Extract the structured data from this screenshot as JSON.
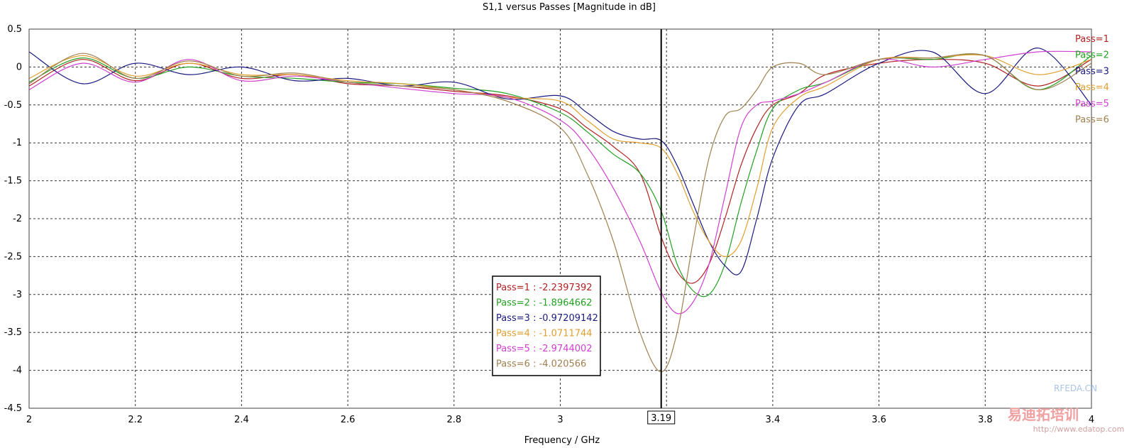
{
  "chart_data": {
    "type": "line",
    "title": "S1,1 versus Passes [Magnitude in dB]",
    "xlabel": "Frequency / GHz",
    "ylabel": "",
    "xlim": [
      2,
      4
    ],
    "ylim": [
      -4.5,
      0.5
    ],
    "x_ticks": [
      "2",
      "2.2",
      "2.4",
      "2.6",
      "2.8",
      "3",
      "3.2",
      "3.4",
      "3.6",
      "3.8",
      "4"
    ],
    "y_ticks": [
      "0.5",
      "0",
      "-0.5",
      "-1",
      "-1.5",
      "-2",
      "-2.5",
      "-3",
      "-3.5",
      "-4",
      "-4.5"
    ],
    "grid": true,
    "legend_position": "right",
    "marker": {
      "x": 3.19,
      "label": "3.19"
    },
    "series": [
      {
        "name": "Pass=1",
        "color": "#b22222",
        "x": [
          2.0,
          2.1,
          2.2,
          2.3,
          2.4,
          2.5,
          2.6,
          2.7,
          2.8,
          2.9,
          3.0,
          3.05,
          3.1,
          3.15,
          3.19,
          3.22,
          3.25,
          3.28,
          3.31,
          3.34,
          3.37,
          3.4,
          3.45,
          3.5,
          3.6,
          3.7,
          3.8,
          3.9,
          4.0
        ],
        "y": [
          -0.25,
          0.1,
          -0.18,
          0.05,
          -0.15,
          -0.1,
          -0.22,
          -0.25,
          -0.32,
          -0.38,
          -0.55,
          -0.8,
          -1.05,
          -1.4,
          -2.24,
          -2.7,
          -2.85,
          -2.6,
          -2.0,
          -1.3,
          -0.8,
          -0.5,
          -0.35,
          -0.1,
          0.05,
          0.1,
          0.05,
          -0.25,
          0.1
        ]
      },
      {
        "name": "Pass=2",
        "color": "#22a022",
        "x": [
          2.0,
          2.1,
          2.2,
          2.3,
          2.4,
          2.5,
          2.6,
          2.7,
          2.8,
          2.9,
          3.0,
          3.05,
          3.1,
          3.15,
          3.19,
          3.22,
          3.25,
          3.28,
          3.31,
          3.34,
          3.37,
          3.4,
          3.45,
          3.5,
          3.6,
          3.7,
          3.8,
          3.9,
          4.0
        ],
        "y": [
          -0.2,
          0.12,
          -0.15,
          0.0,
          -0.12,
          -0.15,
          -0.2,
          -0.22,
          -0.28,
          -0.35,
          -0.6,
          -0.85,
          -1.15,
          -1.4,
          -1.9,
          -2.6,
          -2.95,
          -3.0,
          -2.6,
          -1.8,
          -1.1,
          -0.55,
          -0.3,
          -0.2,
          0.1,
          0.1,
          0.15,
          -0.3,
          0.15
        ]
      },
      {
        "name": "Pass=3",
        "color": "#1a1a80",
        "x": [
          2.0,
          2.1,
          2.2,
          2.3,
          2.4,
          2.5,
          2.6,
          2.7,
          2.8,
          2.9,
          3.0,
          3.05,
          3.1,
          3.15,
          3.19,
          3.22,
          3.25,
          3.28,
          3.31,
          3.34,
          3.37,
          3.4,
          3.45,
          3.5,
          3.6,
          3.7,
          3.8,
          3.9,
          4.0
        ],
        "y": [
          0.2,
          -0.22,
          0.05,
          -0.1,
          0.0,
          -0.18,
          -0.15,
          -0.25,
          -0.2,
          -0.42,
          -0.38,
          -0.6,
          -0.85,
          -0.95,
          -0.97,
          -1.3,
          -1.8,
          -2.3,
          -2.62,
          -2.7,
          -2.0,
          -1.2,
          -0.5,
          -0.35,
          0.05,
          0.2,
          -0.35,
          0.25,
          -0.5
        ]
      },
      {
        "name": "Pass=4",
        "color": "#e0a030",
        "x": [
          2.0,
          2.1,
          2.2,
          2.3,
          2.4,
          2.5,
          2.6,
          2.7,
          2.8,
          2.9,
          3.0,
          3.05,
          3.1,
          3.15,
          3.19,
          3.22,
          3.25,
          3.28,
          3.31,
          3.34,
          3.37,
          3.4,
          3.45,
          3.5,
          3.6,
          3.7,
          3.8,
          3.9,
          4.0
        ],
        "y": [
          -0.15,
          0.15,
          -0.12,
          0.05,
          -0.1,
          -0.1,
          -0.18,
          -0.22,
          -0.3,
          -0.4,
          -0.45,
          -0.7,
          -0.95,
          -1.0,
          -1.07,
          -1.4,
          -1.9,
          -2.3,
          -2.5,
          -2.3,
          -1.6,
          -0.8,
          -0.4,
          -0.25,
          0.1,
          0.12,
          0.15,
          -0.1,
          0.1
        ]
      },
      {
        "name": "Pass=5",
        "color": "#d040d0",
        "x": [
          2.0,
          2.1,
          2.2,
          2.3,
          2.4,
          2.5,
          2.6,
          2.7,
          2.8,
          2.9,
          3.0,
          3.05,
          3.1,
          3.15,
          3.19,
          3.22,
          3.25,
          3.28,
          3.31,
          3.34,
          3.37,
          3.4,
          3.45,
          3.5,
          3.6,
          3.7,
          3.8,
          3.9,
          4.0
        ],
        "y": [
          -0.3,
          0.05,
          -0.2,
          0.1,
          -0.18,
          -0.12,
          -0.2,
          -0.28,
          -0.35,
          -0.4,
          -0.7,
          -1.05,
          -1.6,
          -2.3,
          -2.97,
          -3.25,
          -3.1,
          -2.6,
          -1.7,
          -0.8,
          -0.5,
          -0.45,
          -0.35,
          -0.2,
          0.1,
          0.0,
          0.1,
          0.2,
          0.2
        ]
      },
      {
        "name": "Pass=6",
        "color": "#a08050",
        "x": [
          2.0,
          2.1,
          2.2,
          2.3,
          2.4,
          2.5,
          2.6,
          2.7,
          2.8,
          2.9,
          3.0,
          3.05,
          3.1,
          3.15,
          3.19,
          3.22,
          3.25,
          3.28,
          3.31,
          3.34,
          3.37,
          3.4,
          3.45,
          3.5,
          3.6,
          3.7,
          3.8,
          3.9,
          4.0
        ],
        "y": [
          -0.22,
          0.18,
          -0.15,
          0.08,
          -0.12,
          -0.08,
          -0.2,
          -0.25,
          -0.3,
          -0.45,
          -0.8,
          -1.4,
          -2.3,
          -3.5,
          -4.02,
          -3.5,
          -2.3,
          -1.2,
          -0.65,
          -0.55,
          -0.3,
          0.0,
          0.05,
          -0.1,
          0.1,
          0.12,
          0.15,
          -0.3,
          0.05
        ]
      }
    ],
    "marker_readout": [
      {
        "text": "Pass=1 : -2.2397392",
        "color": "#b22222"
      },
      {
        "text": "Pass=2 : -1.8964662",
        "color": "#22a022"
      },
      {
        "text": "Pass=3 : -0.97209142",
        "color": "#1a1a80"
      },
      {
        "text": "Pass=4 : -1.0711744",
        "color": "#e0a030"
      },
      {
        "text": "Pass=5 : -2.9744002",
        "color": "#d040d0"
      },
      {
        "text": "Pass=6 : -4.020566",
        "color": "#a08050"
      }
    ]
  },
  "watermark": {
    "site": "RFEDA.CN",
    "cn_text": "易迪拓培训",
    "url": "http://www.edatop.com"
  }
}
